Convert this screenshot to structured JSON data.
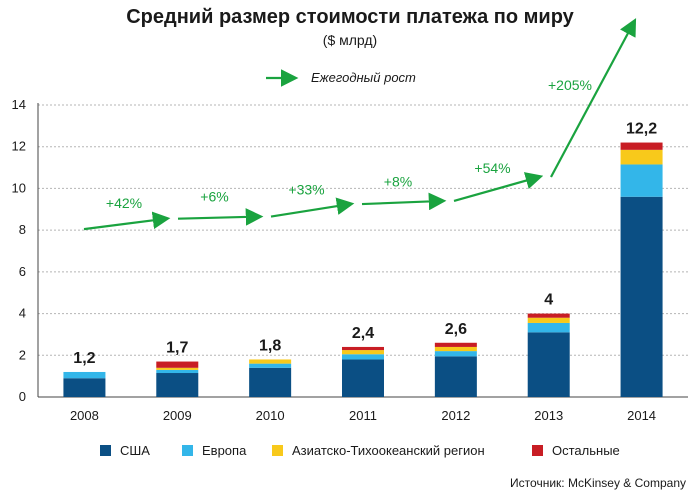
{
  "title": "Средний размер стоимости платежа по миру",
  "subtitle": "($ млрд)",
  "source": "Источник: McKinsey & Company",
  "chart_data": {
    "type": "bar",
    "stacked": true,
    "categories": [
      "2008",
      "2009",
      "2010",
      "2011",
      "2012",
      "2013",
      "2014"
    ],
    "ylim": [
      0,
      14
    ],
    "yticks": [
      0,
      2,
      4,
      6,
      8,
      10,
      12,
      14
    ],
    "grid": true,
    "series": [
      {
        "name": "США",
        "color": "#0b4f84",
        "values": [
          0.9,
          1.15,
          1.4,
          1.8,
          1.95,
          3.1,
          9.6
        ]
      },
      {
        "name": "Европа",
        "color": "#33b6e9",
        "values": [
          0.3,
          0.15,
          0.2,
          0.25,
          0.25,
          0.45,
          1.55
        ]
      },
      {
        "name": "Азиатско-Тихоокеанский регион",
        "color": "#f8c91b",
        "values": [
          0.0,
          0.1,
          0.2,
          0.2,
          0.2,
          0.25,
          0.7
        ]
      },
      {
        "name": "Остальные",
        "color": "#c81d24",
        "values": [
          0.0,
          0.3,
          0.0,
          0.15,
          0.2,
          0.2,
          0.35
        ]
      }
    ],
    "totals": [
      "1,2",
      "1,7",
      "1,8",
      "2,4",
      "2,6",
      "4",
      "12,2"
    ],
    "growth": {
      "name": "Ежегодный рост",
      "color": "#1aa33f",
      "labels": [
        "+42%",
        "+6%",
        "+33%",
        "+8%",
        "+54%",
        "+205%"
      ]
    }
  }
}
